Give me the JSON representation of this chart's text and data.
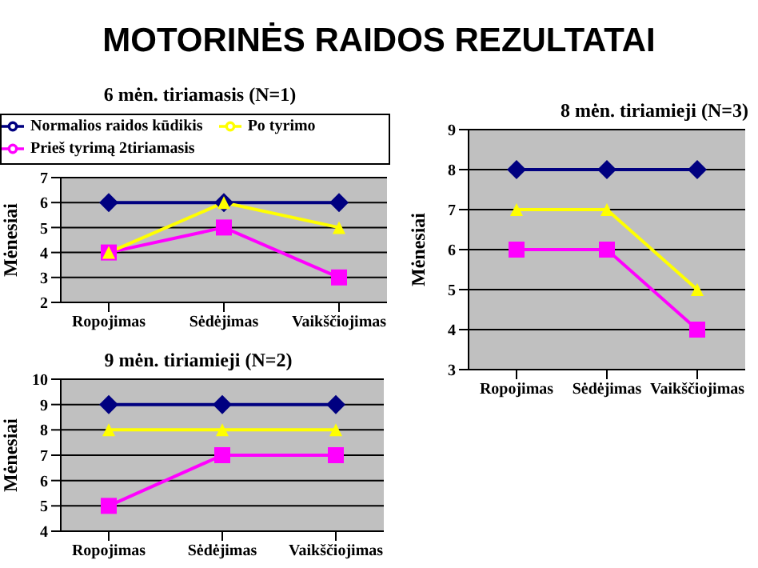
{
  "chart_data": [
    {
      "type": "other",
      "title": "MOTORINĖS RAIDOS REZULTATAI"
    },
    {
      "type": "line",
      "title": "6 mėn. tiriamasis (N=1)",
      "ylabel": "Mėnesiai",
      "categories": [
        "Ropojimas",
        "Sėdėjimas",
        "Vaikščiojimas"
      ],
      "series": [
        {
          "name": "Normalios raidos kūdikis",
          "color": "#000080",
          "marker": "diamond",
          "values": [
            6,
            6,
            6
          ]
        },
        {
          "name": "Prieš tyrimą 2tiriamasis",
          "color": "#ff00ff",
          "marker": "square",
          "values": [
            4,
            5,
            3
          ]
        },
        {
          "name": "Po tyrimo",
          "color": "#ffff00",
          "marker": "triangle",
          "values": [
            4,
            6,
            5
          ]
        }
      ],
      "ylim": [
        2,
        7
      ],
      "yticks": [
        2,
        3,
        4,
        5,
        6,
        7
      ],
      "grid": "y",
      "legend": "top"
    },
    {
      "type": "line",
      "title": "8 mėn. tiriamieji (N=3)",
      "ylabel": "Mėnesiai",
      "categories": [
        "Ropojimas",
        "Sėdėjimas",
        "Vaikščiojimas"
      ],
      "series": [
        {
          "color": "#000080",
          "marker": "diamond",
          "values": [
            8,
            8,
            8
          ]
        },
        {
          "color": "#ff00ff",
          "marker": "square",
          "values": [
            6,
            6,
            4
          ]
        },
        {
          "color": "#ffff00",
          "marker": "triangle",
          "values": [
            7,
            7,
            5
          ]
        }
      ],
      "ylim": [
        3,
        9
      ],
      "yticks": [
        3,
        4,
        5,
        6,
        7,
        8,
        9
      ],
      "grid": "y",
      "legend": false
    },
    {
      "type": "line",
      "title": "9 mėn. tiriamieji (N=2)",
      "ylabel": "Mėnesiai",
      "categories": [
        "Ropojimas",
        "Sėdėjimas",
        "Vaikščiojimas"
      ],
      "series": [
        {
          "color": "#000080",
          "marker": "diamond",
          "values": [
            9,
            9,
            9
          ]
        },
        {
          "color": "#ff00ff",
          "marker": "square",
          "values": [
            5,
            7,
            7
          ]
        },
        {
          "color": "#ffff00",
          "marker": "triangle",
          "values": [
            8,
            8,
            8
          ]
        }
      ],
      "ylim": [
        4,
        10
      ],
      "yticks": [
        4,
        5,
        6,
        7,
        8,
        9,
        10
      ],
      "grid": "y",
      "legend": false
    }
  ]
}
